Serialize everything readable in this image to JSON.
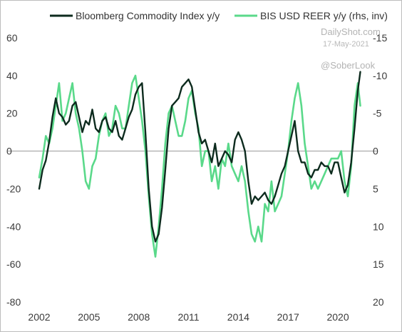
{
  "chart_data": {
    "type": "line",
    "title": "",
    "xlabel": "",
    "ylabel": "",
    "x_ticks": [
      "2002",
      "2005",
      "2008",
      "2011",
      "2014",
      "2017",
      "2020"
    ],
    "x_range": [
      2002.0,
      2021.5
    ],
    "left_axis": {
      "ylim": [
        -80,
        60
      ],
      "ticks": [
        "60",
        "40",
        "20",
        "0",
        "-20",
        "-40",
        "-60",
        "-80"
      ]
    },
    "right_axis": {
      "ylim": [
        -15,
        20
      ],
      "inverted": true,
      "ticks": [
        "-15",
        "-10",
        "-5",
        "0",
        "5",
        "10",
        "15",
        "20"
      ]
    },
    "zero_line": true,
    "grid": false,
    "legend_position": "top",
    "watermarks": [
      "DailyShot.com",
      "17-May-2021",
      "@SoberLook"
    ],
    "series": [
      {
        "name": "Bloomberg Commodity Index y/y",
        "axis": "left",
        "color": "#0d2b1e",
        "x": [
          2002.0,
          2002.2,
          2002.4,
          2002.6,
          2002.8,
          2003.0,
          2003.2,
          2003.4,
          2003.6,
          2003.8,
          2004.0,
          2004.2,
          2004.4,
          2004.6,
          2004.8,
          2005.0,
          2005.2,
          2005.4,
          2005.6,
          2005.8,
          2006.0,
          2006.2,
          2006.4,
          2006.6,
          2006.8,
          2007.0,
          2007.2,
          2007.4,
          2007.6,
          2007.8,
          2008.0,
          2008.2,
          2008.4,
          2008.6,
          2008.8,
          2009.0,
          2009.2,
          2009.4,
          2009.6,
          2009.8,
          2010.0,
          2010.2,
          2010.4,
          2010.6,
          2010.8,
          2011.0,
          2011.2,
          2011.4,
          2011.6,
          2011.8,
          2012.0,
          2012.2,
          2012.4,
          2012.6,
          2012.8,
          2013.0,
          2013.2,
          2013.4,
          2013.6,
          2013.8,
          2014.0,
          2014.2,
          2014.4,
          2014.6,
          2014.8,
          2015.0,
          2015.2,
          2015.4,
          2015.6,
          2015.8,
          2016.0,
          2016.2,
          2016.4,
          2016.6,
          2016.8,
          2017.0,
          2017.2,
          2017.4,
          2017.6,
          2017.8,
          2018.0,
          2018.2,
          2018.4,
          2018.6,
          2018.8,
          2019.0,
          2019.2,
          2019.4,
          2019.6,
          2019.8,
          2020.0,
          2020.2,
          2020.4,
          2020.6,
          2020.8,
          2021.0,
          2021.2,
          2021.35
        ],
        "values": [
          -20,
          -10,
          -5,
          5,
          18,
          28,
          20,
          18,
          14,
          16,
          24,
          26,
          18,
          10,
          16,
          14,
          22,
          12,
          10,
          16,
          18,
          12,
          10,
          16,
          8,
          6,
          12,
          18,
          22,
          30,
          34,
          36,
          10,
          -20,
          -40,
          -48,
          -44,
          -30,
          -10,
          12,
          24,
          26,
          28,
          34,
          36,
          38,
          34,
          22,
          10,
          4,
          6,
          0,
          -6,
          4,
          -8,
          -4,
          0,
          -2,
          -6,
          6,
          10,
          6,
          0,
          -16,
          -28,
          -24,
          -26,
          -24,
          -22,
          -26,
          -28,
          -24,
          -18,
          -12,
          -8,
          0,
          8,
          16,
          0,
          -6,
          -6,
          -12,
          -14,
          -10,
          -10,
          -6,
          -8,
          -8,
          -12,
          -6,
          -6,
          -14,
          -22,
          -18,
          -6,
          12,
          32,
          42
        ]
      },
      {
        "name": "BIS USD REER y/y (rhs, inv)",
        "axis": "right",
        "color": "#5ad98a",
        "x": [
          2002.0,
          2002.2,
          2002.4,
          2002.6,
          2002.8,
          2003.0,
          2003.2,
          2003.4,
          2003.6,
          2003.8,
          2004.0,
          2004.2,
          2004.4,
          2004.6,
          2004.8,
          2005.0,
          2005.2,
          2005.4,
          2005.6,
          2005.8,
          2006.0,
          2006.2,
          2006.4,
          2006.6,
          2006.8,
          2007.0,
          2007.2,
          2007.4,
          2007.6,
          2007.8,
          2008.0,
          2008.2,
          2008.4,
          2008.6,
          2008.8,
          2009.0,
          2009.2,
          2009.4,
          2009.6,
          2009.8,
          2010.0,
          2010.2,
          2010.4,
          2010.6,
          2010.8,
          2011.0,
          2011.2,
          2011.4,
          2011.6,
          2011.8,
          2012.0,
          2012.2,
          2012.4,
          2012.6,
          2012.8,
          2013.0,
          2013.2,
          2013.4,
          2013.6,
          2013.8,
          2014.0,
          2014.2,
          2014.4,
          2014.6,
          2014.8,
          2015.0,
          2015.2,
          2015.4,
          2015.6,
          2015.8,
          2016.0,
          2016.2,
          2016.4,
          2016.6,
          2016.8,
          2017.0,
          2017.2,
          2017.4,
          2017.6,
          2017.8,
          2018.0,
          2018.2,
          2018.4,
          2018.6,
          2018.8,
          2019.0,
          2019.2,
          2019.4,
          2019.6,
          2019.8,
          2020.0,
          2020.2,
          2020.4,
          2020.6,
          2020.8,
          2021.0,
          2021.2,
          2021.35
        ],
        "values": [
          3.5,
          1,
          -2,
          -1,
          -3,
          -6,
          -9,
          -4,
          -5,
          -7,
          -9,
          -5,
          -3,
          0,
          4,
          5,
          2,
          1,
          -2,
          -4,
          -5,
          -2,
          -3,
          -6,
          -5,
          -3,
          -3,
          -6,
          -9,
          -10,
          -7,
          -4,
          0,
          6,
          11,
          14,
          10,
          5,
          -1,
          -5,
          -6,
          -4,
          -2,
          -2,
          -4,
          -7,
          -8,
          -5,
          -3,
          2,
          0,
          0,
          4,
          2,
          5,
          1,
          2,
          -1,
          2,
          3,
          4,
          2,
          4,
          8,
          11,
          12,
          10,
          12,
          7,
          8,
          4,
          8,
          7,
          6,
          3,
          0,
          -4,
          -7,
          -9,
          -6,
          -1,
          2,
          5,
          4,
          5,
          4,
          3,
          2,
          1,
          1,
          1,
          0,
          4,
          6,
          2,
          -6,
          -9,
          -6
        ]
      }
    ]
  }
}
